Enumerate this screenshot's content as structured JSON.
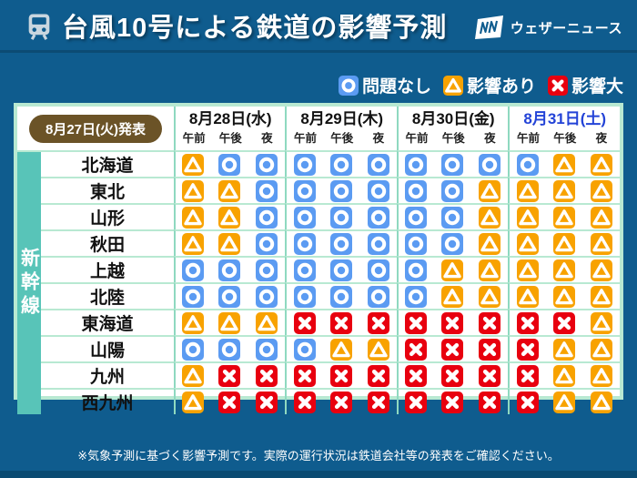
{
  "page": {
    "title": "台風10号による鉄道の影響予測",
    "logo_text": "ウェザーニュース",
    "footnote": "※気象予測に基づく影響予測です。実際の運行状況は鉄道会社等の発表をご確認ください。"
  },
  "legend": {
    "items": [
      {
        "status": "circle",
        "label": "問題なし"
      },
      {
        "status": "triangle",
        "label": "影響あり"
      },
      {
        "status": "cross",
        "label": "影響大"
      }
    ]
  },
  "table": {
    "day_colors": [
      "#111111",
      "#111111",
      "#111111",
      "#2343d7"
    ]
  },
  "colors": {
    "circle": "#5b9bf2",
    "triangle": "#f8a200",
    "cross": "#e8000f",
    "band_teal": "#58c4b8",
    "pill_brown": "#6b5327",
    "page_blue": "#0f5c8e",
    "table_border_green": "#b8e9d2"
  },
  "chart_data": {
    "type": "table",
    "title": "台風10号による鉄道の影響予測",
    "announced": "8月27日(火)発表",
    "row_group": "新幹線",
    "columns": [
      "8月28日(水)",
      "8月29日(木)",
      "8月30日(金)",
      "8月31日(土)"
    ],
    "time_slots": [
      "午前",
      "午後",
      "夜"
    ],
    "legend": {
      "circle": "問題なし",
      "triangle": "影響あり",
      "cross": "影響大"
    },
    "rows": [
      {
        "line": "北海道",
        "statuses": [
          "triangle",
          "circle",
          "circle",
          "circle",
          "circle",
          "circle",
          "circle",
          "circle",
          "circle",
          "circle",
          "triangle",
          "triangle"
        ]
      },
      {
        "line": "東北",
        "statuses": [
          "triangle",
          "triangle",
          "circle",
          "circle",
          "circle",
          "circle",
          "circle",
          "circle",
          "triangle",
          "triangle",
          "triangle",
          "triangle"
        ]
      },
      {
        "line": "山形",
        "statuses": [
          "triangle",
          "triangle",
          "circle",
          "circle",
          "circle",
          "circle",
          "circle",
          "circle",
          "triangle",
          "triangle",
          "triangle",
          "triangle"
        ]
      },
      {
        "line": "秋田",
        "statuses": [
          "triangle",
          "triangle",
          "circle",
          "circle",
          "circle",
          "circle",
          "circle",
          "circle",
          "triangle",
          "triangle",
          "triangle",
          "triangle"
        ]
      },
      {
        "line": "上越",
        "statuses": [
          "circle",
          "circle",
          "circle",
          "circle",
          "circle",
          "circle",
          "circle",
          "triangle",
          "triangle",
          "triangle",
          "triangle",
          "triangle"
        ]
      },
      {
        "line": "北陸",
        "statuses": [
          "circle",
          "circle",
          "circle",
          "circle",
          "circle",
          "circle",
          "circle",
          "triangle",
          "triangle",
          "triangle",
          "triangle",
          "triangle"
        ]
      },
      {
        "line": "東海道",
        "statuses": [
          "triangle",
          "triangle",
          "triangle",
          "cross",
          "cross",
          "cross",
          "cross",
          "cross",
          "cross",
          "cross",
          "cross",
          "triangle"
        ]
      },
      {
        "line": "山陽",
        "statuses": [
          "circle",
          "circle",
          "circle",
          "circle",
          "triangle",
          "triangle",
          "cross",
          "cross",
          "cross",
          "cross",
          "triangle",
          "triangle"
        ]
      },
      {
        "line": "九州",
        "statuses": [
          "triangle",
          "cross",
          "cross",
          "cross",
          "cross",
          "cross",
          "cross",
          "cross",
          "cross",
          "cross",
          "triangle",
          "triangle"
        ]
      },
      {
        "line": "西九州",
        "statuses": [
          "triangle",
          "cross",
          "cross",
          "cross",
          "cross",
          "cross",
          "cross",
          "cross",
          "cross",
          "cross",
          "triangle",
          "triangle"
        ]
      }
    ]
  }
}
